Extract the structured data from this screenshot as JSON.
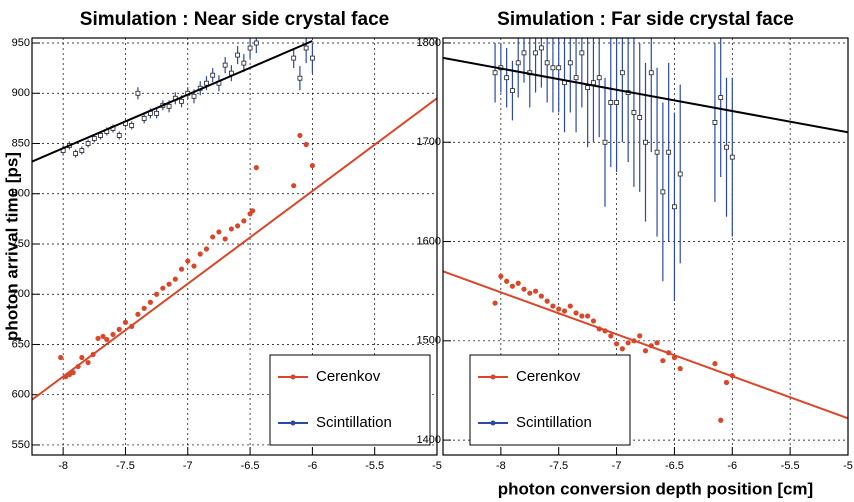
{
  "chart_data": [
    {
      "type": "scatter",
      "title": "Simulation : Near side crystal face",
      "y_label": "photon arrival time [ps]",
      "xlim": [
        -8.25,
        -5
      ],
      "ylim": [
        540,
        955
      ],
      "xticks": [
        -8,
        -7.5,
        -7,
        -6.5,
        -6,
        -5.5,
        -5
      ],
      "yticks": [
        550,
        600,
        650,
        700,
        750,
        800,
        850,
        900,
        950
      ],
      "grid": true,
      "legend": "lower right",
      "series": [
        {
          "name": "Cerenkov",
          "color": "#d9472b",
          "marker": "circle",
          "x": [
            -8.02,
            -7.98,
            -7.95,
            -7.92,
            -7.88,
            -7.85,
            -7.8,
            -7.76,
            -7.72,
            -7.68,
            -7.65,
            -7.6,
            -7.55,
            -7.5,
            -7.45,
            -7.4,
            -7.35,
            -7.3,
            -7.25,
            -7.2,
            -7.15,
            -7.1,
            -7.05,
            -7.0,
            -6.95,
            -6.9,
            -6.85,
            -6.8,
            -6.75,
            -6.7,
            -6.65,
            -6.6,
            -6.55,
            -6.5,
            -6.48,
            -6.45,
            -6.15,
            -6.1,
            -6.05,
            -6.0
          ],
          "values": [
            637,
            618,
            620,
            622,
            628,
            637,
            632,
            640,
            656,
            658,
            655,
            660,
            665,
            672,
            668,
            680,
            686,
            692,
            700,
            706,
            710,
            715,
            725,
            733,
            728,
            740,
            745,
            757,
            762,
            755,
            765,
            768,
            773,
            780,
            783,
            826,
            808,
            858,
            849,
            828
          ]
        },
        {
          "name": "Scintillation",
          "color": "#2b4aa8",
          "marker": "square",
          "x": [
            -8.0,
            -7.95,
            -7.9,
            -7.85,
            -7.8,
            -7.75,
            -7.7,
            -7.65,
            -7.6,
            -7.55,
            -7.5,
            -7.45,
            -7.4,
            -7.35,
            -7.3,
            -7.25,
            -7.2,
            -7.15,
            -7.1,
            -7.05,
            -7.0,
            -6.95,
            -6.9,
            -6.85,
            -6.8,
            -6.75,
            -6.7,
            -6.65,
            -6.6,
            -6.55,
            -6.5,
            -6.45,
            -6.15,
            -6.1,
            -6.05,
            -6.0
          ],
          "values": [
            843,
            848,
            840,
            843,
            850,
            855,
            858,
            862,
            865,
            858,
            870,
            868,
            900,
            875,
            880,
            880,
            888,
            887,
            895,
            892,
            900,
            897,
            905,
            910,
            918,
            910,
            928,
            920,
            938,
            930,
            945,
            950,
            935,
            915,
            945,
            935
          ],
          "errors": [
            5,
            4,
            4,
            4,
            4,
            4,
            4,
            4,
            4,
            4,
            4,
            4,
            6,
            5,
            5,
            5,
            5,
            6,
            6,
            6,
            6,
            7,
            7,
            7,
            7,
            8,
            8,
            8,
            9,
            9,
            10,
            10,
            10,
            12,
            15,
            15
          ]
        }
      ],
      "fit_lines": [
        {
          "color": "#000000",
          "x": [
            -8.25,
            -6.0
          ],
          "values": [
            832,
            952
          ]
        },
        {
          "color": "#d9472b",
          "x": [
            -8.25,
            -5.0
          ],
          "values": [
            595,
            895
          ]
        }
      ]
    },
    {
      "type": "scatter",
      "title": "Simulation : Far side crystal face",
      "x_label": "photon conversion depth position [cm]",
      "xlim": [
        -8.5,
        -5
      ],
      "ylim": [
        1385,
        1805
      ],
      "xticks": [
        -8,
        -7.5,
        -7,
        -6.5,
        -6,
        -5.5,
        -5
      ],
      "yticks": [
        1400,
        1500,
        1600,
        1700,
        1800
      ],
      "grid": true,
      "legend": "lower left",
      "series": [
        {
          "name": "Cerenkov",
          "color": "#d9472b",
          "marker": "circle",
          "x": [
            -8.05,
            -8.0,
            -7.95,
            -7.9,
            -7.85,
            -7.8,
            -7.75,
            -7.7,
            -7.65,
            -7.6,
            -7.55,
            -7.5,
            -7.45,
            -7.4,
            -7.35,
            -7.3,
            -7.25,
            -7.2,
            -7.15,
            -7.1,
            -7.05,
            -7.0,
            -6.95,
            -6.9,
            -6.85,
            -6.8,
            -6.75,
            -6.7,
            -6.65,
            -6.6,
            -6.55,
            -6.5,
            -6.45,
            -6.15,
            -6.1,
            -6.05,
            -6.0
          ],
          "values": [
            1538,
            1565,
            1560,
            1555,
            1558,
            1552,
            1548,
            1550,
            1545,
            1540,
            1535,
            1532,
            1530,
            1535,
            1528,
            1525,
            1525,
            1520,
            1512,
            1510,
            1505,
            1497,
            1492,
            1498,
            1500,
            1505,
            1490,
            1495,
            1498,
            1480,
            1488,
            1483,
            1472,
            1477,
            1420,
            1458,
            1465
          ]
        },
        {
          "name": "Scintillation",
          "color": "#2b4aa8",
          "marker": "square",
          "x": [
            -8.05,
            -8.0,
            -7.95,
            -7.9,
            -7.85,
            -7.8,
            -7.75,
            -7.7,
            -7.65,
            -7.6,
            -7.55,
            -7.5,
            -7.45,
            -7.4,
            -7.35,
            -7.3,
            -7.25,
            -7.2,
            -7.15,
            -7.1,
            -7.05,
            -7.0,
            -6.95,
            -6.9,
            -6.85,
            -6.8,
            -6.75,
            -6.7,
            -6.65,
            -6.6,
            -6.55,
            -6.5,
            -6.45,
            -6.15,
            -6.1,
            -6.05,
            -6.0
          ],
          "values": [
            1770,
            1775,
            1765,
            1752,
            1780,
            1790,
            1770,
            1790,
            1795,
            1780,
            1775,
            1775,
            1760,
            1780,
            1765,
            1790,
            1755,
            1760,
            1765,
            1700,
            1740,
            1740,
            1770,
            1750,
            1730,
            1725,
            1700,
            1770,
            1690,
            1650,
            1690,
            1635,
            1668,
            1720,
            1745,
            1695,
            1685
          ],
          "errors": [
            30,
            25,
            30,
            30,
            35,
            30,
            35,
            40,
            40,
            40,
            45,
            45,
            50,
            50,
            55,
            55,
            60,
            60,
            60,
            65,
            65,
            70,
            70,
            70,
            75,
            75,
            80,
            80,
            85,
            90,
            90,
            95,
            90,
            80,
            80,
            70,
            80
          ]
        }
      ],
      "fit_lines": [
        {
          "color": "#000000",
          "x": [
            -8.5,
            -5.0
          ],
          "values": [
            1785,
            1710
          ]
        },
        {
          "color": "#d9472b",
          "x": [
            -8.5,
            -5.0
          ],
          "values": [
            1570,
            1422
          ]
        }
      ]
    }
  ]
}
